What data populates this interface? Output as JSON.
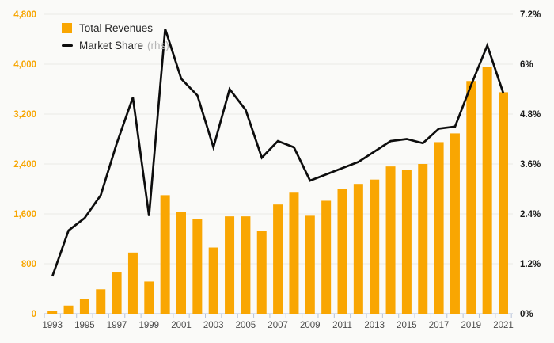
{
  "chart_data": {
    "type": "bar+line",
    "title": "",
    "categories": [
      1993,
      1994,
      1995,
      1996,
      1997,
      1998,
      1999,
      2000,
      2001,
      2002,
      2003,
      2004,
      2005,
      2006,
      2007,
      2008,
      2009,
      2010,
      2011,
      2012,
      2013,
      2014,
      2015,
      2016,
      2017,
      2018,
      2019,
      2020,
      2021
    ],
    "series": [
      {
        "name": "Total Revenues",
        "type": "bar",
        "axis": "left",
        "values": [
          45,
          130,
          230,
          390,
          660,
          980,
          515,
          1900,
          1630,
          1520,
          1060,
          1560,
          1560,
          1330,
          1750,
          1940,
          1570,
          1810,
          2000,
          2080,
          2150,
          2360,
          2310,
          2400,
          2750,
          2890,
          3730,
          3960,
          3550
        ]
      },
      {
        "name": "Market Share",
        "type": "line",
        "axis": "right",
        "values": [
          0.9,
          2.0,
          2.3,
          2.85,
          4.1,
          5.2,
          2.35,
          6.85,
          5.65,
          5.25,
          4.0,
          5.4,
          4.9,
          3.75,
          4.15,
          4.0,
          3.2,
          3.35,
          3.5,
          3.65,
          3.9,
          4.15,
          4.2,
          4.1,
          4.45,
          4.5,
          5.5,
          6.45,
          5.3
        ]
      }
    ],
    "left_axis": {
      "min": 0,
      "max": 4800,
      "tick_labels": [
        "0",
        "800",
        "1,600",
        "2,400",
        "3,200",
        "4,000",
        "4,800"
      ]
    },
    "right_axis": {
      "min": 0,
      "max": 7.2,
      "tick_labels": [
        "0%",
        "1.2%",
        "2.4%",
        "3.6%",
        "4.8%",
        "6%",
        "7.2%"
      ]
    },
    "x_tick_labels": [
      "1993",
      "1995",
      "1997",
      "1999",
      "2001",
      "2003",
      "2005",
      "2007",
      "2009",
      "2011",
      "2013",
      "2015",
      "2017",
      "2019",
      "2021"
    ],
    "legend": [
      {
        "label": "Total Revenues",
        "note": "",
        "swatch": "bar"
      },
      {
        "label": "Market Share",
        "note": "(rhs)",
        "swatch": "line"
      }
    ],
    "layout_hints": {
      "grid": true,
      "legend_position": "top-left"
    },
    "colors": {
      "bar": "#F9A602",
      "line": "#0D0D0D",
      "left_axis_label": "#F7A602",
      "right_axis_label": "#1A1A1A",
      "x_axis_label": "#4D4D4D",
      "gridline": "#E9E9E6",
      "axis_line": "#B7C3DA",
      "background": "#FAFAF8",
      "legend_text": "#262626",
      "legend_note": "#B5B5B5"
    }
  }
}
